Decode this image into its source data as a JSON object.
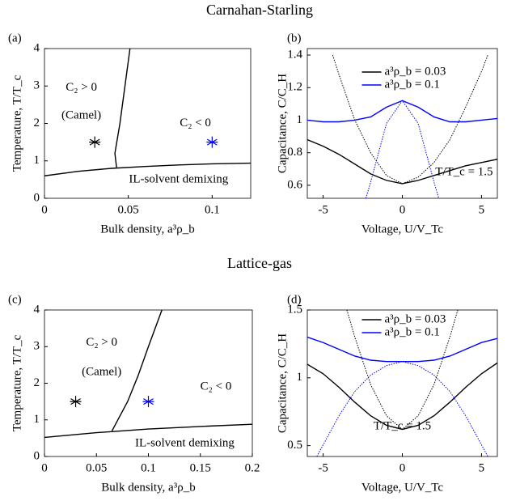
{
  "group_titles": [
    "Carnahan-Starling",
    "Lattice-gas"
  ],
  "chart_data": [
    {
      "type": "line",
      "label": "(a)",
      "x_label": "Bulk density, a³ρ_b",
      "y_label": "Temperature, T/T_c",
      "xlim": [
        0,
        0.123
      ],
      "ylim": [
        0,
        4
      ],
      "xticks": [
        0,
        0.05,
        0.1
      ],
      "yticks": [
        0,
        1,
        2,
        3,
        4
      ],
      "annotations": [
        "C₂ > 0",
        "(Camel)",
        "C₂ < 0",
        "IL-solvent demixing"
      ],
      "series": [
        {
          "color": "#000000",
          "style": "solid",
          "x": [
            0,
            0.02,
            0.04,
            0.06,
            0.08,
            0.1,
            0.123
          ],
          "values": [
            0.6,
            0.72,
            0.8,
            0.85,
            0.89,
            0.92,
            0.94
          ]
        },
        {
          "color": "#000000",
          "style": "solid",
          "x": [
            0.043,
            0.042,
            0.045,
            0.048,
            0.051
          ],
          "values": [
            0.82,
            1.2,
            2,
            3,
            4
          ]
        },
        {
          "color": "#000000",
          "marker": "asterisk",
          "x": [
            0.03
          ],
          "values": [
            1.5
          ]
        },
        {
          "color": "#0000ff",
          "marker": "asterisk",
          "x": [
            0.1
          ],
          "values": [
            1.5
          ]
        }
      ]
    },
    {
      "type": "line",
      "label": "(b)",
      "x_label": "Voltage, U/V_Tc",
      "y_label": "Capacitance, C/C_H",
      "xlim": [
        -6,
        6
      ],
      "ylim": [
        0.52,
        1.44
      ],
      "xticks": [
        -5,
        0,
        5
      ],
      "yticks": [
        0.6,
        0.8,
        1,
        1.2,
        1.4
      ],
      "legend": "upper center",
      "annotations": [
        "T/T_c = 1.5"
      ],
      "series": [
        {
          "name": "a³ρ_b = 0.03",
          "color": "#000000",
          "style": "solid",
          "x": [
            -6,
            -5,
            -4,
            -3,
            -2,
            -1,
            0,
            1,
            2,
            3,
            4,
            5,
            6
          ],
          "values": [
            0.88,
            0.84,
            0.79,
            0.73,
            0.67,
            0.63,
            0.61,
            0.63,
            0.66,
            0.69,
            0.72,
            0.74,
            0.76
          ]
        },
        {
          "name": "a³ρ_b = 0.1",
          "color": "#0000ff",
          "style": "solid",
          "x": [
            -6,
            -5,
            -4,
            -3,
            -2,
            -1,
            0,
            1,
            2,
            3,
            4,
            5,
            6
          ],
          "values": [
            1.0,
            0.99,
            0.99,
            1.0,
            1.02,
            1.08,
            1.12,
            1.08,
            1.02,
            0.99,
            0.99,
            1.0,
            1.01
          ]
        },
        {
          "color": "#000000",
          "style": "dotted",
          "x": [
            -4.4,
            -4,
            -3,
            -2,
            -1,
            0,
            1,
            2,
            3,
            4,
            5,
            5.4
          ],
          "values": [
            1.4,
            1.28,
            1.0,
            0.8,
            0.66,
            0.61,
            0.65,
            0.74,
            0.88,
            1.08,
            1.3,
            1.4
          ]
        },
        {
          "color": "#0000ff",
          "style": "dotted",
          "x": [
            -2.3,
            -2,
            -1,
            0,
            1,
            2,
            2.3
          ],
          "values": [
            0.52,
            0.62,
            0.98,
            1.12,
            0.98,
            0.62,
            0.52
          ]
        }
      ]
    },
    {
      "type": "line",
      "label": "(c)",
      "x_label": "Bulk density, a³ρ_b",
      "y_label": "Temperature, T/T_c",
      "xlim": [
        0,
        0.2
      ],
      "ylim": [
        0,
        4
      ],
      "xticks": [
        0,
        0.05,
        0.1,
        0.15,
        0.2
      ],
      "yticks": [
        0,
        1,
        2,
        3,
        4
      ],
      "annotations": [
        "C₂ > 0",
        "(Camel)",
        "C₂ < 0",
        "IL-solvent demixing"
      ],
      "series": [
        {
          "color": "#000000",
          "style": "solid",
          "x": [
            0,
            0.05,
            0.1,
            0.15,
            0.2
          ],
          "values": [
            0.52,
            0.65,
            0.75,
            0.82,
            0.88
          ]
        },
        {
          "color": "#000000",
          "style": "solid",
          "x": [
            0.065,
            0.08,
            0.09,
            0.1,
            0.113
          ],
          "values": [
            0.7,
            1.5,
            2.2,
            3,
            4
          ]
        },
        {
          "color": "#000000",
          "marker": "asterisk",
          "x": [
            0.03
          ],
          "values": [
            1.5
          ]
        },
        {
          "color": "#0000ff",
          "marker": "asterisk",
          "x": [
            0.1
          ],
          "values": [
            1.5
          ]
        }
      ]
    },
    {
      "type": "line",
      "label": "(d)",
      "x_label": "Voltage, U/V_Tc",
      "y_label": "Capacitance, C/C_H",
      "xlim": [
        -6,
        6
      ],
      "ylim": [
        0.42,
        1.5
      ],
      "xticks": [
        -5,
        0,
        5
      ],
      "yticks": [
        0.5,
        1,
        1.5
      ],
      "legend": "upper center",
      "annotations": [
        "T/T_c = 1.5"
      ],
      "series": [
        {
          "name": "a³ρ_b = 0.03",
          "color": "#000000",
          "style": "solid",
          "x": [
            -6,
            -5,
            -4,
            -3,
            -2,
            -1,
            0,
            1,
            2,
            3,
            4,
            5,
            6
          ],
          "values": [
            1.1,
            1.03,
            0.93,
            0.82,
            0.72,
            0.65,
            0.62,
            0.65,
            0.72,
            0.82,
            0.93,
            1.03,
            1.11
          ]
        },
        {
          "name": "a³ρ_b = 0.1",
          "color": "#0000ff",
          "style": "solid",
          "x": [
            -6,
            -5,
            -4,
            -3,
            -2,
            -1,
            0,
            1,
            2,
            3,
            4,
            5,
            6
          ],
          "values": [
            1.3,
            1.26,
            1.21,
            1.16,
            1.13,
            1.12,
            1.12,
            1.12,
            1.13,
            1.16,
            1.21,
            1.26,
            1.29
          ]
        },
        {
          "color": "#000000",
          "style": "dotted",
          "x": [
            -3.5,
            -3,
            -2,
            -1,
            0,
            1,
            2,
            3,
            3.5
          ],
          "values": [
            1.5,
            1.3,
            0.95,
            0.72,
            0.62,
            0.72,
            0.95,
            1.3,
            1.5
          ]
        },
        {
          "color": "#0000ff",
          "style": "dotted",
          "x": [
            -5.4,
            -4,
            -3,
            -2,
            -1,
            0,
            1,
            2,
            3,
            4,
            5.4
          ],
          "values": [
            0.42,
            0.72,
            0.9,
            1.02,
            1.09,
            1.12,
            1.09,
            1.02,
            0.9,
            0.72,
            0.42
          ]
        }
      ]
    }
  ]
}
